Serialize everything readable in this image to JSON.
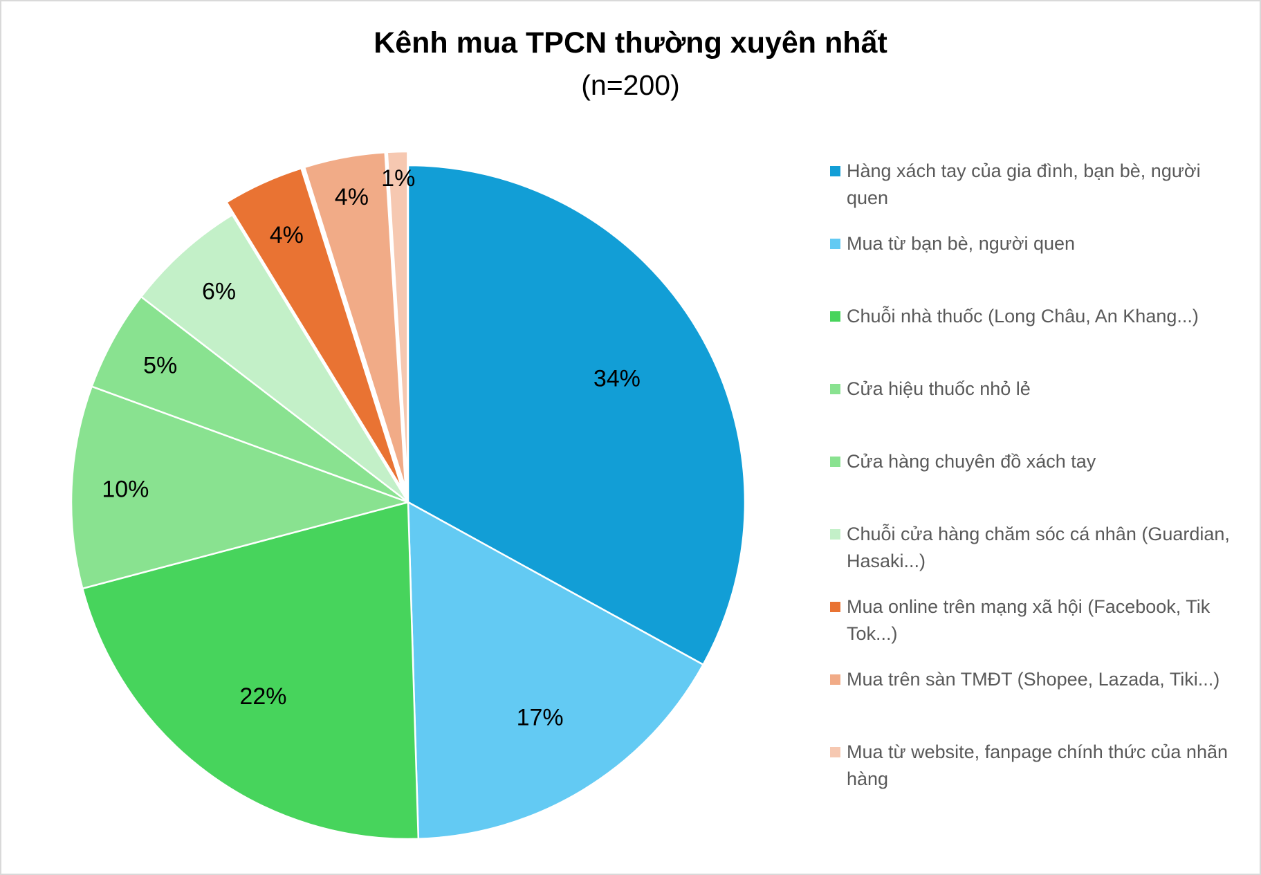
{
  "chart_data": {
    "type": "pie",
    "title": "Kênh mua TPCN thường xuyên nhất",
    "subtitle": "(n=200)",
    "legend_position": "right",
    "slices": [
      {
        "label": "Hàng xách tay của gia đình, bạn bè, người quen",
        "value": 34,
        "display": "34%",
        "color": "#129ED6",
        "exploded": false
      },
      {
        "label": "Mua từ bạn bè, người quen",
        "value": 17,
        "display": "17%",
        "color": "#63CAF3",
        "exploded": false
      },
      {
        "label": "Chuỗi nhà thuốc (Long Châu, An Khang...)",
        "value": 22,
        "display": "22%",
        "color": "#47D45C",
        "exploded": false
      },
      {
        "label": "Cửa hiệu thuốc nhỏ lẻ",
        "value": 10,
        "display": "10%",
        "color": "#89E290",
        "exploded": false
      },
      {
        "label": "Cửa hàng chuyên đồ xách tay",
        "value": 5,
        "display": "5%",
        "color": "#89E290",
        "exploded": false
      },
      {
        "label": "Chuỗi cửa hàng chăm sóc cá nhân (Guardian, Hasaki...)",
        "value": 6,
        "display": "6%",
        "color": "#C3F0C8",
        "exploded": false
      },
      {
        "label": "Mua online trên mạng xã hội (Facebook, Tik Tok...)",
        "value": 4,
        "display": "4%",
        "color": "#E97333",
        "exploded": true
      },
      {
        "label": "Mua trên sàn TMĐT (Shopee, Lazada, Tiki...)",
        "value": 4,
        "display": "4%",
        "color": "#F1AB87",
        "exploded": true
      },
      {
        "label": "Mua từ website, fanpage chính thức của nhãn hàng",
        "value": 1,
        "display": "1%",
        "color": "#F6C8B1",
        "exploded": true
      }
    ]
  }
}
